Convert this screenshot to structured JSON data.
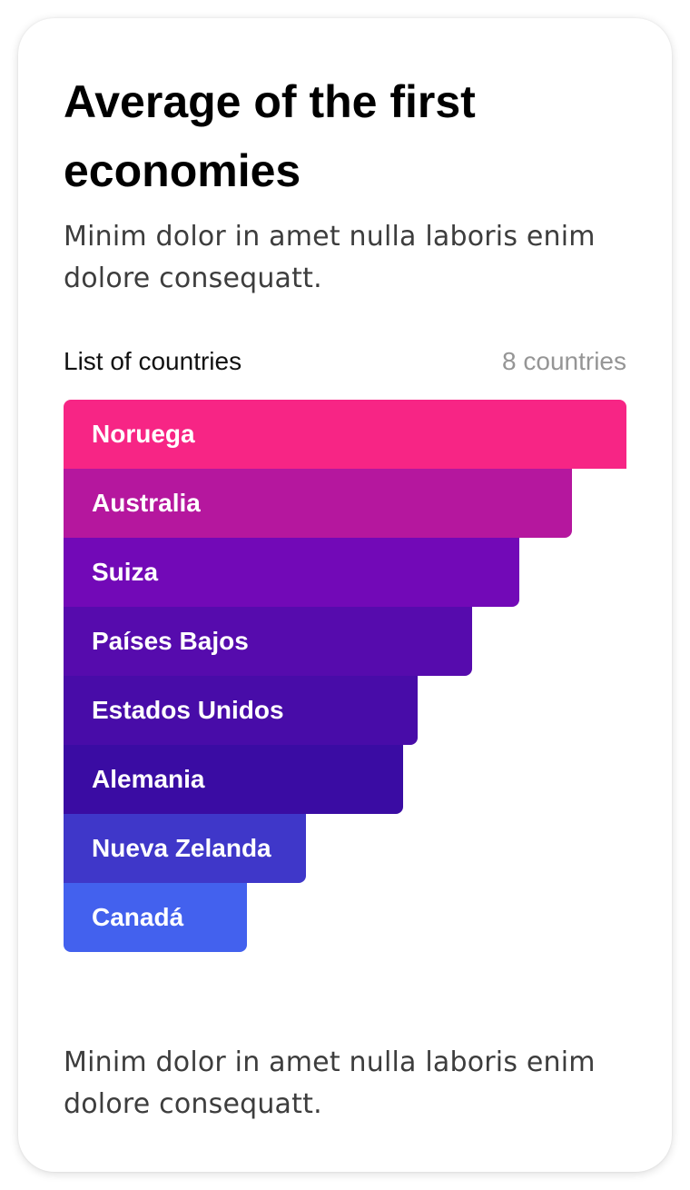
{
  "card": {
    "title": "Average of the first economies",
    "description": "Minim dolor in amet nulla laboris enim dolore consequatt.",
    "list_label": "List of countries",
    "list_count": "8 countries",
    "footer_text": "Minim dolor in amet nulla laboris enim dolore consequatt."
  },
  "chart_data": {
    "type": "bar",
    "orientation": "horizontal",
    "value_unit": "percent of longest bar",
    "categories": [
      "Noruega",
      "Australia",
      "Suiza",
      "Países Bajos",
      "Estados Unidos",
      "Alemania",
      "Nueva Zelanda",
      "Canadá"
    ],
    "values": [
      100,
      90.3,
      81,
      72.6,
      62.9,
      60.3,
      43,
      32.6
    ],
    "colors": [
      "#f72585",
      "#b5179e",
      "#7209b7",
      "#560bad",
      "#480ca8",
      "#3a0ca3",
      "#3f37c9",
      "#4361ee"
    ]
  }
}
